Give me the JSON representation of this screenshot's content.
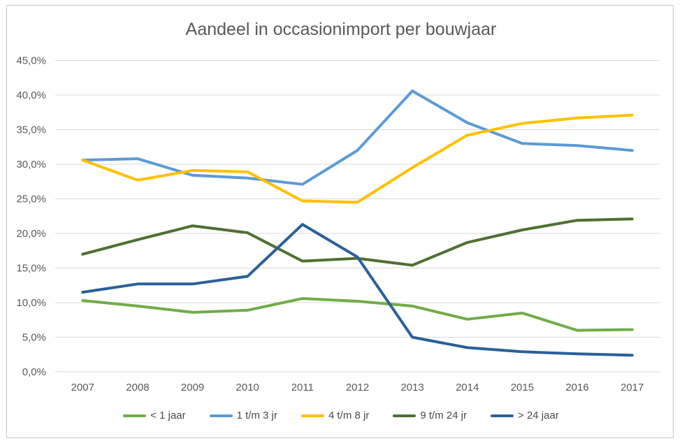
{
  "title": "Aandeel in occasionimport per bouwjaar",
  "colors": {
    "gridline": "#d9d9d9",
    "axis_text": "#595959",
    "title_text": "#595959"
  },
  "chart_data": {
    "type": "line",
    "title": "Aandeel in occasionimport per bouwjaar",
    "xlabel": "",
    "ylabel": "",
    "grid": true,
    "legend_position": "bottom",
    "ylim": [
      0,
      45
    ],
    "categories": [
      "2007",
      "2008",
      "2009",
      "2010",
      "2011",
      "2012",
      "2013",
      "2014",
      "2015",
      "2016",
      "2017"
    ],
    "yticks": [
      {
        "value": 0,
        "label": "0,0%"
      },
      {
        "value": 5,
        "label": "5,0%"
      },
      {
        "value": 10,
        "label": "10,0%"
      },
      {
        "value": 15,
        "label": "15,0%"
      },
      {
        "value": 20,
        "label": "20,0%"
      },
      {
        "value": 25,
        "label": "25,0%"
      },
      {
        "value": 30,
        "label": "30,0%"
      },
      {
        "value": 35,
        "label": "35,0%"
      },
      {
        "value": 40,
        "label": "40,0%"
      },
      {
        "value": 45,
        "label": "45,0%"
      }
    ],
    "series": [
      {
        "name": "< 1 jaar",
        "color": "#70AD47",
        "values": [
          10.3,
          9.5,
          8.6,
          8.9,
          10.6,
          10.2,
          9.5,
          7.6,
          8.5,
          6.0,
          6.1
        ]
      },
      {
        "name": "1 t/m 3 jr",
        "color": "#5B9BD5",
        "values": [
          30.6,
          30.8,
          28.4,
          28.0,
          27.1,
          32.0,
          40.6,
          36.0,
          33.0,
          32.7,
          32.0
        ]
      },
      {
        "name": "4 t/m 8 jr",
        "color": "#FFC000",
        "values": [
          30.6,
          27.7,
          29.1,
          28.9,
          24.7,
          24.5,
          29.5,
          34.2,
          35.9,
          36.7,
          37.1
        ]
      },
      {
        "name": "9 t/m 24 jr",
        "color": "#4E7031",
        "values": [
          17.0,
          19.1,
          21.1,
          20.1,
          16.0,
          16.4,
          15.4,
          18.7,
          20.5,
          21.9,
          22.1
        ]
      },
      {
        "name": "> 24 jaar",
        "color": "#2A6099",
        "values": [
          11.5,
          12.7,
          12.7,
          13.8,
          21.3,
          16.6,
          5.0,
          3.5,
          2.9,
          2.6,
          2.4
        ]
      }
    ]
  }
}
